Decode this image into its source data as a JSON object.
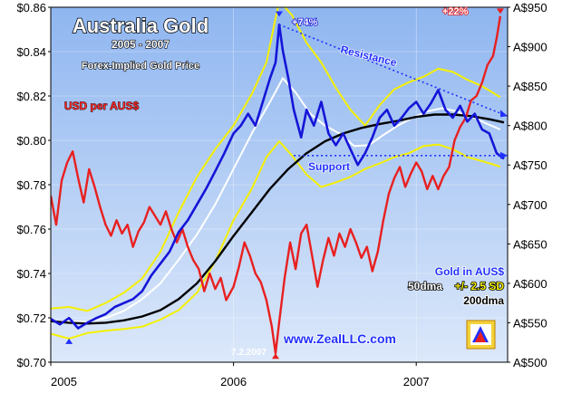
{
  "chart_data": {
    "type": "line",
    "title": "Australia Gold",
    "subtitle": "2005 - 2007",
    "subtitle2": "Forex-Implied Gold Price",
    "left_axis_label": "USD per AUS$",
    "x_ticks": [
      "2005",
      "2006",
      "2007"
    ],
    "left_ticks": [
      "$0.86",
      "$0.84",
      "$0.82",
      "$0.80",
      "$0.78",
      "$0.76",
      "$0.74",
      "$0.72",
      "$0.70"
    ],
    "right_ticks": [
      "A$950",
      "A$900",
      "A$850",
      "A$800",
      "A$750",
      "A$700",
      "A$650",
      "A$600",
      "A$550",
      "A$500"
    ],
    "ylim_left": [
      0.7,
      0.86
    ],
    "ylim_right": [
      500,
      950
    ],
    "legend": {
      "line1": "Gold in AUS$",
      "line2a": "50dma",
      "line2b": "+/- 2.5 SD",
      "line3": "200dma"
    },
    "annotations": {
      "resistance": "Resistance",
      "support": "Support",
      "pct74": "+74%",
      "pct22": "+22%",
      "date_low": "7.2.2007",
      "website": "www.ZealLLC.com"
    },
    "colors": {
      "gold_aud": "#1515d8",
      "usd_per_aud": "#e82020",
      "ma50": "#ffffff",
      "bands": "#f5f000",
      "ma200": "#000000",
      "plot_bg_top": "#8fb6f0",
      "plot_bg_bottom": "#dce8fa"
    },
    "series": [
      {
        "name": "USD per AUS$",
        "axis": "left",
        "points": [
          [
            2005.0,
            0.775
          ],
          [
            2005.03,
            0.762
          ],
          [
            2005.06,
            0.782
          ],
          [
            2005.09,
            0.79
          ],
          [
            2005.12,
            0.795
          ],
          [
            2005.15,
            0.783
          ],
          [
            2005.18,
            0.772
          ],
          [
            2005.21,
            0.787
          ],
          [
            2005.24,
            0.779
          ],
          [
            2005.27,
            0.77
          ],
          [
            2005.3,
            0.762
          ],
          [
            2005.33,
            0.757
          ],
          [
            2005.36,
            0.764
          ],
          [
            2005.39,
            0.758
          ],
          [
            2005.42,
            0.762
          ],
          [
            2005.45,
            0.752
          ],
          [
            2005.48,
            0.759
          ],
          [
            2005.51,
            0.763
          ],
          [
            2005.54,
            0.77
          ],
          [
            2005.57,
            0.766
          ],
          [
            2005.6,
            0.762
          ],
          [
            2005.63,
            0.768
          ],
          [
            2005.66,
            0.76
          ],
          [
            2005.69,
            0.754
          ],
          [
            2005.72,
            0.76
          ],
          [
            2005.75,
            0.752
          ],
          [
            2005.78,
            0.746
          ],
          [
            2005.81,
            0.742
          ],
          [
            2005.84,
            0.732
          ],
          [
            2005.87,
            0.74
          ],
          [
            2005.9,
            0.733
          ],
          [
            2005.93,
            0.738
          ],
          [
            2005.96,
            0.728
          ],
          [
            2006.0,
            0.734
          ],
          [
            2006.03,
            0.743
          ],
          [
            2006.06,
            0.754
          ],
          [
            2006.09,
            0.748
          ],
          [
            2006.12,
            0.74
          ],
          [
            2006.15,
            0.736
          ],
          [
            2006.18,
            0.728
          ],
          [
            2006.21,
            0.716
          ],
          [
            2006.23,
            0.704
          ],
          [
            2006.25,
            0.718
          ],
          [
            2006.28,
            0.738
          ],
          [
            2006.31,
            0.754
          ],
          [
            2006.34,
            0.742
          ],
          [
            2006.37,
            0.758
          ],
          [
            2006.4,
            0.762
          ],
          [
            2006.43,
            0.748
          ],
          [
            2006.46,
            0.734
          ],
          [
            2006.49,
            0.746
          ],
          [
            2006.52,
            0.756
          ],
          [
            2006.55,
            0.748
          ],
          [
            2006.58,
            0.758
          ],
          [
            2006.61,
            0.752
          ],
          [
            2006.64,
            0.76
          ],
          [
            2006.67,
            0.754
          ],
          [
            2006.7,
            0.747
          ],
          [
            2006.73,
            0.752
          ],
          [
            2006.76,
            0.741
          ],
          [
            2006.79,
            0.75
          ],
          [
            2006.82,
            0.764
          ],
          [
            2006.85,
            0.776
          ],
          [
            2006.88,
            0.783
          ],
          [
            2006.91,
            0.788
          ],
          [
            2006.94,
            0.779
          ],
          [
            2006.97,
            0.785
          ],
          [
            2007.0,
            0.79
          ],
          [
            2007.03,
            0.786
          ],
          [
            2007.06,
            0.778
          ],
          [
            2007.09,
            0.784
          ],
          [
            2007.12,
            0.778
          ],
          [
            2007.15,
            0.784
          ],
          [
            2007.18,
            0.788
          ],
          [
            2007.21,
            0.8
          ],
          [
            2007.24,
            0.806
          ],
          [
            2007.27,
            0.81
          ],
          [
            2007.3,
            0.818
          ],
          [
            2007.33,
            0.82
          ],
          [
            2007.36,
            0.826
          ],
          [
            2007.39,
            0.834
          ],
          [
            2007.42,
            0.838
          ],
          [
            2007.44,
            0.846
          ],
          [
            2007.46,
            0.856
          ]
        ]
      },
      {
        "name": "Gold in AUS$",
        "axis": "right",
        "points": [
          [
            2005.0,
            555
          ],
          [
            2005.05,
            548
          ],
          [
            2005.1,
            556
          ],
          [
            2005.15,
            543
          ],
          [
            2005.2,
            550
          ],
          [
            2005.25,
            556
          ],
          [
            2005.3,
            561
          ],
          [
            2005.35,
            570
          ],
          [
            2005.4,
            575
          ],
          [
            2005.45,
            580
          ],
          [
            2005.5,
            590
          ],
          [
            2005.55,
            610
          ],
          [
            2005.6,
            625
          ],
          [
            2005.65,
            640
          ],
          [
            2005.7,
            665
          ],
          [
            2005.75,
            680
          ],
          [
            2005.8,
            700
          ],
          [
            2005.85,
            720
          ],
          [
            2005.9,
            742
          ],
          [
            2005.95,
            765
          ],
          [
            2006.0,
            790
          ],
          [
            2006.04,
            800
          ],
          [
            2006.08,
            815
          ],
          [
            2006.12,
            800
          ],
          [
            2006.16,
            830
          ],
          [
            2006.2,
            860
          ],
          [
            2006.23,
            880
          ],
          [
            2006.25,
            928
          ],
          [
            2006.27,
            895
          ],
          [
            2006.3,
            860
          ],
          [
            2006.33,
            820
          ],
          [
            2006.37,
            785
          ],
          [
            2006.4,
            820
          ],
          [
            2006.44,
            800
          ],
          [
            2006.48,
            830
          ],
          [
            2006.52,
            790
          ],
          [
            2006.56,
            775
          ],
          [
            2006.6,
            790
          ],
          [
            2006.64,
            770
          ],
          [
            2006.68,
            750
          ],
          [
            2006.72,
            765
          ],
          [
            2006.76,
            785
          ],
          [
            2006.8,
            810
          ],
          [
            2006.84,
            820
          ],
          [
            2006.88,
            800
          ],
          [
            2006.92,
            810
          ],
          [
            2006.96,
            822
          ],
          [
            2007.0,
            830
          ],
          [
            2007.04,
            815
          ],
          [
            2007.08,
            828
          ],
          [
            2007.12,
            845
          ],
          [
            2007.16,
            820
          ],
          [
            2007.2,
            810
          ],
          [
            2007.24,
            825
          ],
          [
            2007.28,
            805
          ],
          [
            2007.32,
            815
          ],
          [
            2007.36,
            795
          ],
          [
            2007.4,
            790
          ],
          [
            2007.44,
            765
          ],
          [
            2007.48,
            758
          ]
        ]
      },
      {
        "name": "50dma",
        "axis": "right",
        "points": [
          [
            2005.0,
            552
          ],
          [
            2005.1,
            552
          ],
          [
            2005.2,
            551
          ],
          [
            2005.3,
            556
          ],
          [
            2005.4,
            565
          ],
          [
            2005.5,
            580
          ],
          [
            2005.6,
            600
          ],
          [
            2005.7,
            630
          ],
          [
            2005.8,
            662
          ],
          [
            2005.9,
            700
          ],
          [
            2006.0,
            745
          ],
          [
            2006.1,
            790
          ],
          [
            2006.2,
            830
          ],
          [
            2006.27,
            860
          ],
          [
            2006.34,
            842
          ],
          [
            2006.42,
            815
          ],
          [
            2006.5,
            800
          ],
          [
            2006.58,
            790
          ],
          [
            2006.66,
            774
          ],
          [
            2006.74,
            775
          ],
          [
            2006.82,
            788
          ],
          [
            2006.9,
            800
          ],
          [
            2006.98,
            810
          ],
          [
            2007.06,
            818
          ],
          [
            2007.14,
            822
          ],
          [
            2007.22,
            818
          ],
          [
            2007.3,
            812
          ],
          [
            2007.38,
            803
          ],
          [
            2007.46,
            795
          ]
        ]
      },
      {
        "name": "+2.5 SD",
        "axis": "right",
        "points": [
          [
            2005.0,
            568
          ],
          [
            2005.1,
            570
          ],
          [
            2005.2,
            565
          ],
          [
            2005.3,
            575
          ],
          [
            2005.4,
            588
          ],
          [
            2005.5,
            606
          ],
          [
            2005.6,
            640
          ],
          [
            2005.7,
            690
          ],
          [
            2005.8,
            735
          ],
          [
            2005.9,
            770
          ],
          [
            2006.0,
            800
          ],
          [
            2006.1,
            840
          ],
          [
            2006.18,
            880
          ],
          [
            2006.25,
            958
          ],
          [
            2006.32,
            940
          ],
          [
            2006.4,
            905
          ],
          [
            2006.48,
            880
          ],
          [
            2006.56,
            848
          ],
          [
            2006.64,
            820
          ],
          [
            2006.72,
            800
          ],
          [
            2006.8,
            826
          ],
          [
            2006.88,
            846
          ],
          [
            2006.96,
            855
          ],
          [
            2007.04,
            862
          ],
          [
            2007.12,
            872
          ],
          [
            2007.2,
            868
          ],
          [
            2007.28,
            858
          ],
          [
            2007.36,
            850
          ],
          [
            2007.46,
            836
          ]
        ]
      },
      {
        "name": "-2.5 SD",
        "axis": "right",
        "points": [
          [
            2005.0,
            536
          ],
          [
            2005.1,
            530
          ],
          [
            2005.2,
            537
          ],
          [
            2005.3,
            540
          ],
          [
            2005.4,
            542
          ],
          [
            2005.5,
            545
          ],
          [
            2005.6,
            554
          ],
          [
            2005.7,
            566
          ],
          [
            2005.8,
            588
          ],
          [
            2005.9,
            628
          ],
          [
            2006.0,
            680
          ],
          [
            2006.1,
            720
          ],
          [
            2006.18,
            760
          ],
          [
            2006.25,
            780
          ],
          [
            2006.32,
            762
          ],
          [
            2006.4,
            738
          ],
          [
            2006.48,
            722
          ],
          [
            2006.56,
            728
          ],
          [
            2006.64,
            735
          ],
          [
            2006.72,
            745
          ],
          [
            2006.8,
            752
          ],
          [
            2006.88,
            760
          ],
          [
            2006.96,
            765
          ],
          [
            2007.04,
            774
          ],
          [
            2007.12,
            776
          ],
          [
            2007.2,
            770
          ],
          [
            2007.28,
            760
          ],
          [
            2007.36,
            755
          ],
          [
            2007.46,
            748
          ]
        ]
      },
      {
        "name": "200dma",
        "axis": "right",
        "points": [
          [
            2005.0,
            552
          ],
          [
            2005.1,
            550
          ],
          [
            2005.2,
            549
          ],
          [
            2005.3,
            550
          ],
          [
            2005.4,
            553
          ],
          [
            2005.5,
            558
          ],
          [
            2005.6,
            566
          ],
          [
            2005.7,
            580
          ],
          [
            2005.8,
            600
          ],
          [
            2005.9,
            628
          ],
          [
            2006.0,
            660
          ],
          [
            2006.1,
            690
          ],
          [
            2006.2,
            720
          ],
          [
            2006.3,
            745
          ],
          [
            2006.4,
            765
          ],
          [
            2006.5,
            780
          ],
          [
            2006.6,
            790
          ],
          [
            2006.7,
            797
          ],
          [
            2006.8,
            802
          ],
          [
            2006.9,
            806
          ],
          [
            2007.0,
            811
          ],
          [
            2007.1,
            814
          ],
          [
            2007.2,
            814
          ],
          [
            2007.3,
            812
          ],
          [
            2007.4,
            808
          ],
          [
            2007.48,
            804
          ]
        ]
      }
    ]
  }
}
